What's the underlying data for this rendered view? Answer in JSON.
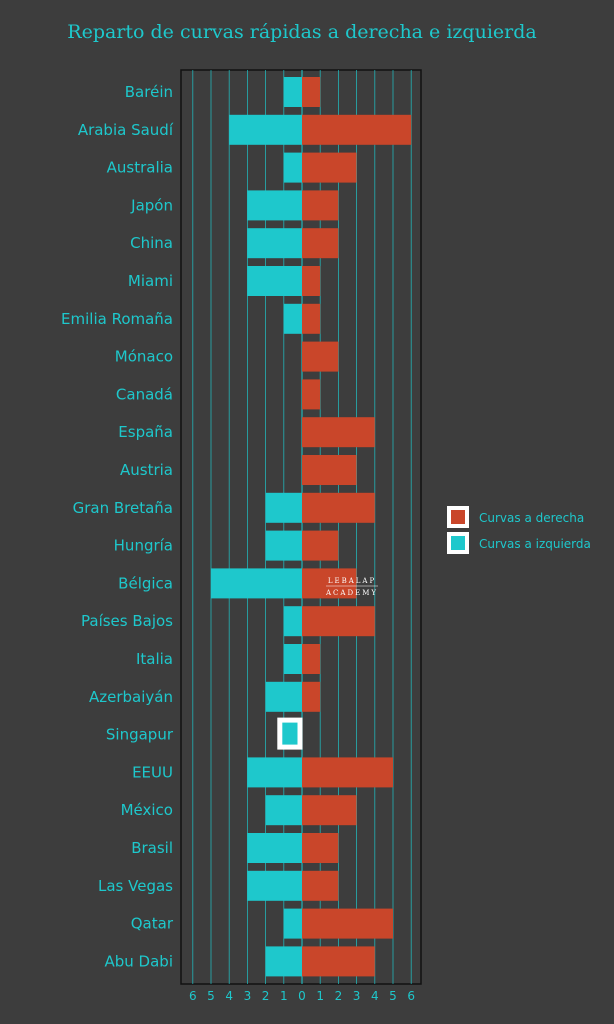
{
  "chart_data": {
    "type": "bar",
    "orientation": "horizontal-diverging",
    "title": "Reparto de curvas rápidas a derecha e izquierda",
    "categories": [
      "Baréin",
      "Arabia Saudí",
      "Australia",
      "Japón",
      "China",
      "Miami",
      "Emilia Romaña",
      "Mónaco",
      "Canadá",
      "España",
      "Austria",
      "Gran Bretaña",
      "Hungría",
      "Bélgica",
      "Países Bajos",
      "Italia",
      "Azerbaiyán",
      "Singapur",
      "EEUU",
      "México",
      "Brasil",
      "Las Vegas",
      "Qatar",
      "Abu Dabi"
    ],
    "series": [
      {
        "name": "Curvas a derecha",
        "color": "#c9462a",
        "values": [
          1,
          6,
          3,
          2,
          2,
          1,
          1,
          2,
          1,
          4,
          3,
          4,
          2,
          3,
          4,
          1,
          1,
          0,
          5,
          3,
          2,
          2,
          5,
          4
        ]
      },
      {
        "name": "Curvas a izquierda",
        "color": "#1ec8cc",
        "values": [
          1,
          4,
          1,
          3,
          3,
          3,
          1,
          0,
          0,
          0,
          0,
          2,
          2,
          5,
          1,
          1,
          2,
          1,
          3,
          2,
          3,
          3,
          1,
          2
        ]
      }
    ],
    "xlim": [
      -6,
      6
    ],
    "x_ticks": [
      "6",
      "5",
      "4",
      "3",
      "2",
      "1",
      "0",
      "1",
      "2",
      "3",
      "4",
      "5",
      "6"
    ],
    "grid": true,
    "legend_position": "right",
    "highlight": "Singapur"
  },
  "watermark": {
    "line1": "LEBALAP",
    "line2": "ACADEMY"
  }
}
